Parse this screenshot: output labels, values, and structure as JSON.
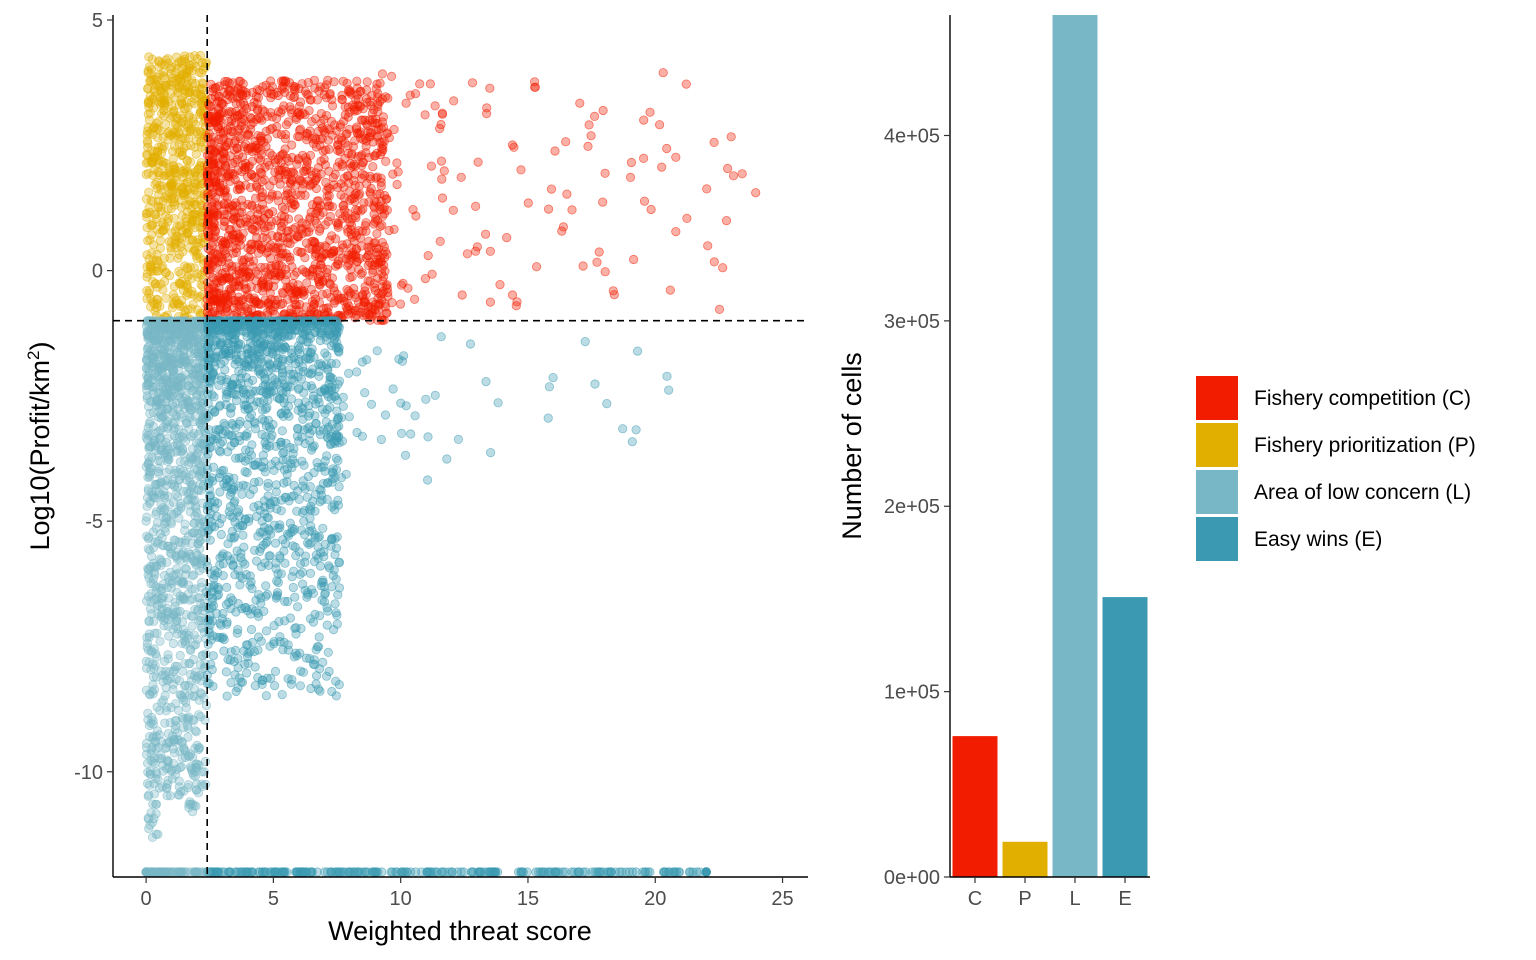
{
  "colors": {
    "C": "#f21d00",
    "P": "#e1af00",
    "L": "#78b7c5",
    "E": "#3b9ab2"
  },
  "chart_data": [
    {
      "type": "scatter",
      "xlabel": "Weighted threat score",
      "ylabel_main": "Log10(Profit/km",
      "ylabel_sup": "2",
      "ylabel_end": ")",
      "xlim": [
        -1.3,
        26
      ],
      "ylim": [
        -12.1,
        5.1
      ],
      "x_ticks": [
        0,
        5,
        10,
        15,
        20,
        25
      ],
      "x_tick_labels": [
        "0",
        "5",
        "10",
        "15",
        "20",
        "25"
      ],
      "y_ticks": [
        5,
        0,
        -5,
        -10
      ],
      "y_tick_labels": [
        "5",
        "0",
        "-5",
        "-10"
      ],
      "threshold_x": 2.4,
      "threshold_y": -1.0,
      "quadrants": {
        "P": {
          "x": [
            0,
            2.4
          ],
          "y": [
            -1.0,
            4.35
          ]
        },
        "C": {
          "x": [
            2.4,
            24
          ],
          "y": [
            -1.0,
            4.2
          ]
        },
        "L": {
          "x": [
            0,
            2.4
          ],
          "y": [
            -12.0,
            -1.0
          ]
        },
        "E": {
          "x": [
            2.4,
            22
          ],
          "y": [
            -12.0,
            -1.0
          ]
        }
      },
      "grid": false
    },
    {
      "type": "bar",
      "ylabel": "Number of cells",
      "categories": [
        "C",
        "P",
        "L",
        "E"
      ],
      "values": [
        76000,
        19000,
        465000,
        151000
      ],
      "ylim": [
        0,
        465000
      ],
      "y_ticks": [
        0,
        100000,
        200000,
        300000,
        400000
      ],
      "y_tick_labels": [
        "0e+00",
        "1e+05",
        "2e+05",
        "3e+05",
        "4e+05"
      ],
      "grid": false
    }
  ],
  "legend": {
    "placement": "right",
    "items": [
      {
        "key": "C",
        "label": "Fishery competition (C)"
      },
      {
        "key": "P",
        "label": "Fishery prioritization (P)"
      },
      {
        "key": "L",
        "label": "Area of low concern (L)"
      },
      {
        "key": "E",
        "label": "Easy wins (E)"
      }
    ]
  }
}
